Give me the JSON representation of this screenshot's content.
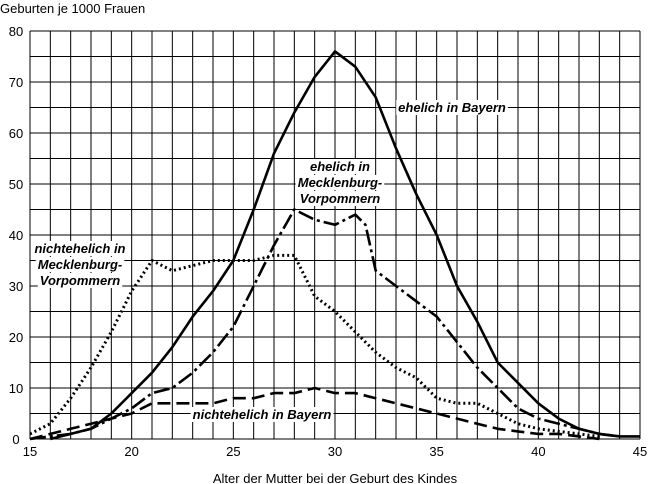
{
  "chart_data": {
    "type": "line",
    "title": "",
    "ylabel": "Geburten je 1000 Frauen",
    "xlabel": "Alter der Mutter bei der Geburt des Kindes",
    "xlim": [
      15,
      45
    ],
    "ylim": [
      0,
      80
    ],
    "x_ticks": [
      15,
      20,
      25,
      30,
      35,
      40,
      45
    ],
    "y_ticks": [
      0,
      10,
      20,
      30,
      40,
      50,
      60,
      70,
      80
    ],
    "grid": true,
    "series": [
      {
        "style": "solid",
        "color": "#000000",
        "points": [
          [
            16,
            0
          ],
          [
            17,
            1
          ],
          [
            18,
            2
          ],
          [
            19,
            5
          ],
          [
            20,
            9
          ],
          [
            21,
            13
          ],
          [
            22,
            18
          ],
          [
            23,
            24
          ],
          [
            24,
            29
          ],
          [
            25,
            35
          ],
          [
            26,
            45
          ],
          [
            27,
            56
          ],
          [
            28,
            64
          ],
          [
            29,
            71
          ],
          [
            30,
            76
          ],
          [
            31,
            73
          ],
          [
            32,
            67
          ],
          [
            33,
            57
          ],
          [
            34,
            48
          ],
          [
            35,
            40
          ],
          [
            36,
            30
          ],
          [
            37,
            23
          ],
          [
            38,
            15
          ],
          [
            39,
            11
          ],
          [
            40,
            7
          ],
          [
            41,
            4
          ],
          [
            42,
            2
          ],
          [
            43,
            1
          ],
          [
            44,
            0.5
          ],
          [
            45,
            0.5
          ]
        ]
      },
      {
        "style": "long-dash",
        "color": "#000000",
        "points": [
          [
            15,
            0
          ],
          [
            16,
            0.5
          ],
          [
            17,
            1
          ],
          [
            18,
            2
          ],
          [
            19,
            4
          ],
          [
            20,
            6
          ],
          [
            21,
            9
          ],
          [
            22,
            10
          ],
          [
            23,
            13
          ],
          [
            24,
            17
          ],
          [
            25,
            22
          ],
          [
            26,
            30
          ],
          [
            27,
            38
          ],
          [
            28,
            45
          ],
          [
            29,
            43
          ],
          [
            30,
            42
          ],
          [
            31,
            44
          ],
          [
            31.5,
            42
          ],
          [
            32,
            33
          ],
          [
            33,
            30
          ],
          [
            34,
            27
          ],
          [
            35,
            24
          ],
          [
            36,
            19
          ],
          [
            37,
            14
          ],
          [
            38,
            10
          ],
          [
            39,
            6
          ],
          [
            40,
            4
          ],
          [
            41,
            3
          ],
          [
            42,
            2
          ],
          [
            43,
            1
          ],
          [
            44,
            0.5
          ]
        ]
      },
      {
        "style": "dotted",
        "color": "#000000",
        "points": [
          [
            15,
            1
          ],
          [
            16,
            3
          ],
          [
            17,
            8
          ],
          [
            18,
            14
          ],
          [
            19,
            21
          ],
          [
            20,
            29
          ],
          [
            21,
            35
          ],
          [
            22,
            33
          ],
          [
            23,
            34
          ],
          [
            24,
            35
          ],
          [
            25,
            35
          ],
          [
            26,
            35
          ],
          [
            27,
            36
          ],
          [
            28,
            36
          ],
          [
            29,
            28
          ],
          [
            30,
            25
          ],
          [
            31,
            21
          ],
          [
            32,
            17
          ],
          [
            33,
            14
          ],
          [
            34,
            12
          ],
          [
            35,
            8
          ],
          [
            36,
            7
          ],
          [
            37,
            7
          ],
          [
            38,
            5
          ],
          [
            39,
            3
          ],
          [
            40,
            2
          ],
          [
            41,
            1.5
          ],
          [
            42,
            1
          ],
          [
            43,
            0.5
          ]
        ]
      },
      {
        "style": "dashed",
        "color": "#000000",
        "points": [
          [
            15,
            0
          ],
          [
            16,
            1
          ],
          [
            17,
            2
          ],
          [
            18,
            3
          ],
          [
            19,
            4
          ],
          [
            20,
            5
          ],
          [
            21,
            7
          ],
          [
            22,
            7
          ],
          [
            23,
            7
          ],
          [
            24,
            7
          ],
          [
            25,
            8
          ],
          [
            26,
            8
          ],
          [
            27,
            9
          ],
          [
            28,
            9
          ],
          [
            29,
            10
          ],
          [
            30,
            9
          ],
          [
            31,
            9
          ],
          [
            32,
            8
          ],
          [
            33,
            7
          ],
          [
            34,
            6
          ],
          [
            35,
            5
          ],
          [
            36,
            4
          ],
          [
            37,
            3
          ],
          [
            38,
            2
          ],
          [
            39,
            1.5
          ],
          [
            40,
            1
          ],
          [
            41,
            1
          ],
          [
            42,
            0.5
          ],
          [
            43,
            0
          ]
        ]
      }
    ],
    "annotations": [
      {
        "text": "ehelich in Bayern",
        "lines": [
          "ehelich in Bayern"
        ]
      },
      {
        "text": "ehelich in Mecklenburg-Vorpommern",
        "lines": [
          "ehelich in",
          "Mecklenburg-",
          "Vorpommern"
        ]
      },
      {
        "text": "nichtehelich in Mecklenburg-Vorpommern",
        "lines": [
          "nichtehelich in",
          "Mecklenburg-",
          "Vorpommern"
        ]
      },
      {
        "text": "nichtehelich in Bayern",
        "lines": [
          "nichtehelich in Bayern"
        ]
      }
    ]
  }
}
